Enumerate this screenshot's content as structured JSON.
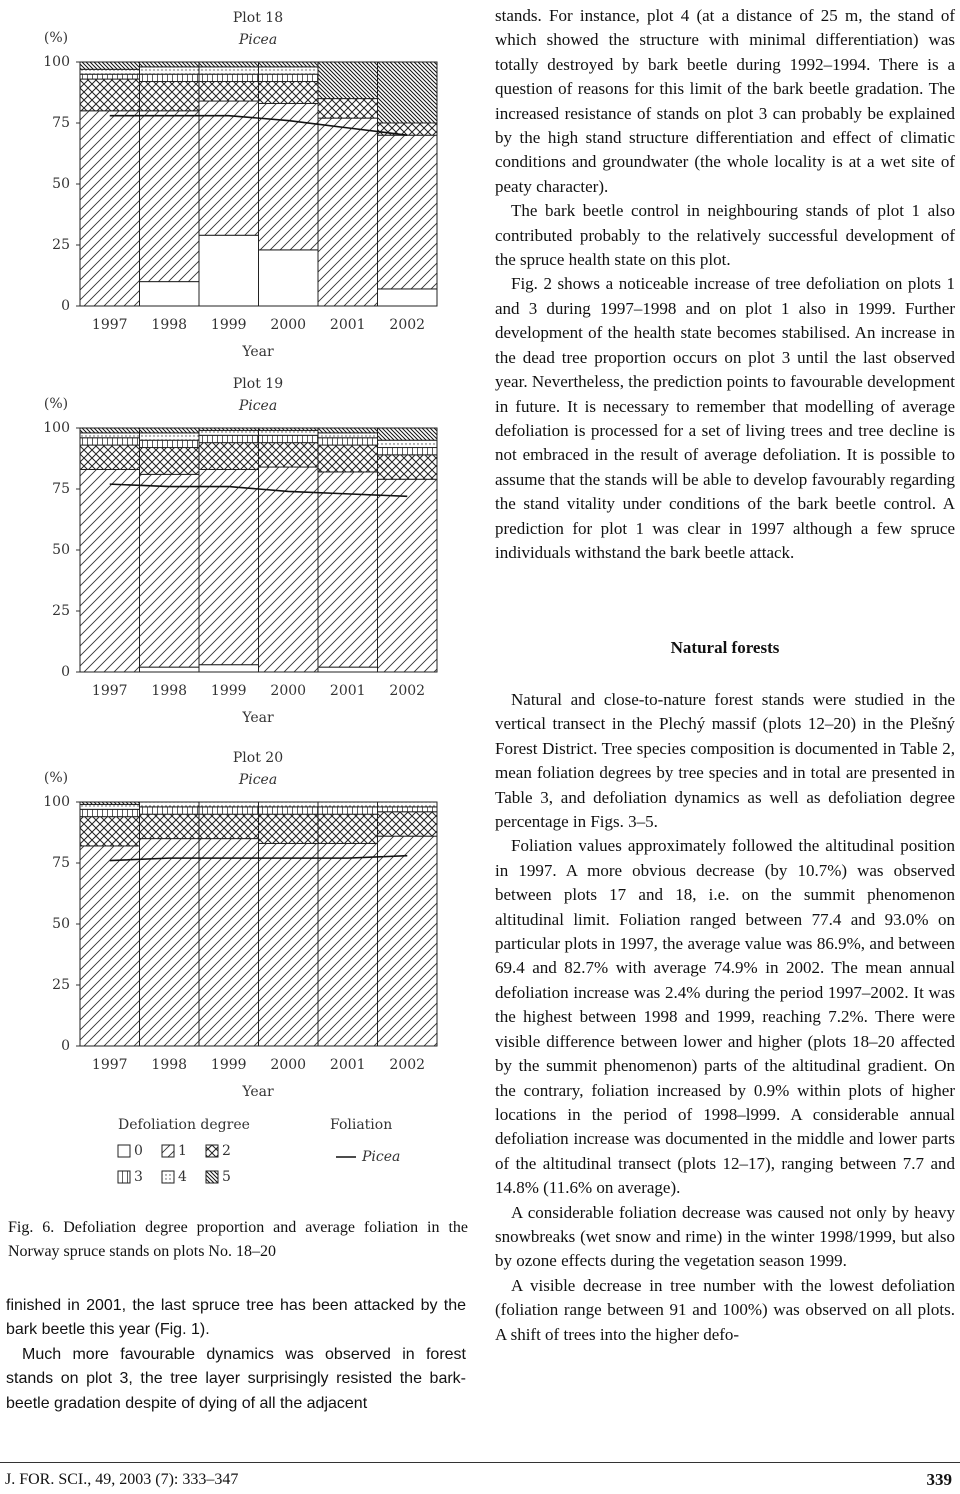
{
  "chart_data": [
    {
      "type": "bar",
      "stacked": true,
      "title": "Plot 18",
      "subtitle": "Picea",
      "ylabel": "(%)",
      "xlabel": "Year",
      "categories": [
        "1997",
        "1998",
        "1999",
        "2000",
        "2001",
        "2002"
      ],
      "ylim": [
        0,
        100
      ],
      "yticks": [
        0,
        25,
        50,
        75,
        100
      ],
      "series": [
        {
          "name": "0",
          "values": [
            0,
            10,
            29,
            23,
            0,
            7
          ]
        },
        {
          "name": "1",
          "values": [
            80,
            70,
            55,
            60,
            77,
            63
          ]
        },
        {
          "name": "2",
          "values": [
            13,
            12,
            8,
            9,
            8,
            5
          ]
        },
        {
          "name": "3",
          "values": [
            2,
            3,
            3,
            3,
            0,
            0
          ]
        },
        {
          "name": "4",
          "values": [
            2,
            3,
            3,
            3,
            0,
            0
          ]
        },
        {
          "name": "5",
          "values": [
            3,
            2,
            2,
            2,
            15,
            25
          ]
        },
        {
          "name": "Picea",
          "type": "line",
          "values": [
            78,
            78,
            78,
            76,
            73,
            70
          ]
        }
      ]
    },
    {
      "type": "bar",
      "stacked": true,
      "title": "Plot 19",
      "subtitle": "Picea",
      "ylabel": "(%)",
      "xlabel": "Year",
      "categories": [
        "1997",
        "1998",
        "1999",
        "2000",
        "2001",
        "2002"
      ],
      "ylim": [
        0,
        100
      ],
      "yticks": [
        0,
        25,
        50,
        75,
        100
      ],
      "series": [
        {
          "name": "0",
          "values": [
            0,
            2,
            3,
            0,
            2,
            0
          ]
        },
        {
          "name": "1",
          "values": [
            83,
            79,
            80,
            84,
            80,
            79
          ]
        },
        {
          "name": "2",
          "values": [
            10,
            11,
            11,
            10,
            11,
            10
          ]
        },
        {
          "name": "3",
          "values": [
            3,
            3,
            3,
            3,
            3,
            3
          ]
        },
        {
          "name": "4",
          "values": [
            2,
            3,
            2,
            2,
            2,
            3
          ]
        },
        {
          "name": "5",
          "values": [
            2,
            2,
            1,
            1,
            2,
            5
          ]
        },
        {
          "name": "Picea",
          "type": "line",
          "values": [
            77,
            76,
            76,
            74,
            73,
            72
          ]
        }
      ]
    },
    {
      "type": "bar",
      "stacked": true,
      "title": "Plot 20",
      "subtitle": "Picea",
      "ylabel": "(%)",
      "xlabel": "Year",
      "categories": [
        "1997",
        "1998",
        "1999",
        "2000",
        "2001",
        "2002"
      ],
      "ylim": [
        0,
        100
      ],
      "yticks": [
        0,
        25,
        50,
        75,
        100
      ],
      "series": [
        {
          "name": "0",
          "values": [
            0,
            0,
            0,
            0,
            0,
            0
          ]
        },
        {
          "name": "1",
          "values": [
            82,
            85,
            85,
            83,
            83,
            86
          ]
        },
        {
          "name": "2",
          "values": [
            12,
            10,
            10,
            12,
            12,
            10
          ]
        },
        {
          "name": "3",
          "values": [
            3,
            3,
            3,
            3,
            3,
            2
          ]
        },
        {
          "name": "4",
          "values": [
            2,
            2,
            2,
            2,
            2,
            2
          ]
        },
        {
          "name": "5",
          "values": [
            1,
            0,
            0,
            0,
            0,
            0
          ]
        },
        {
          "name": "Picea",
          "type": "line",
          "values": [
            76,
            77,
            77,
            77,
            77,
            78
          ]
        }
      ]
    }
  ],
  "legend": {
    "defoliation_title": "Defoliation degree",
    "foliation_title": "Foliation"
  },
  "caption": "Fig. 6. Defoliation degree proportion and average foliation in the Norway spruce stands on plots No. 18–20",
  "left_text": [
    "finished in 2001, the last spruce tree has been attacked by the bark beetle this year (Fig. 1).",
    "Much more favourable dynamics was observed in forest stands on plot 3, the tree layer surprisingly resisted the bark-beetle gradation despite of dying of all the adjacent"
  ],
  "right_text": [
    "stands. For instance, plot 4 (at a distance of 25 m, the stand of which showed the structure with minimal differentiation) was totally destroyed by bark beetle during 1992–1994. There is a question of reasons for this limit of the bark beetle gradation. The increased resistance of stands on plot 3 can probably be explained by the high stand structure differentiation and effect of climatic conditions and groundwater (the whole locality is at a wet site of peaty character).",
    "The bark beetle control in neighbouring stands of plot 1 also contributed probably to the relatively successful development of the spruce health state on this plot.",
    "Fig. 2 shows a noticeable increase of tree defoliation on plots 1 and 3 during 1997–1998 and on plot 1 also in 1999. Further development of the health state becomes stabilised. An increase in the dead tree proportion occurs on plot 3 until the last observed year. Nevertheless, the prediction points to favourable development in future. It is necessary to remember that modelling of average defoliation is processed for a set of living trees and tree decline is not embraced in the result of average defoliation. It is possible to assume that the stands will be able to develop favourably regarding the stand vitality under conditions of the bark beetle control. A prediction for plot 1 was clear in 1997 although a few spruce individuals withstand the bark beetle attack."
  ],
  "section_heading": "Natural forests",
  "section_text": [
    "Natural and close-to-nature forest stands were studied in the vertical transect in the Plechý massif (plots 12–20) in the Plešný Forest District. Tree species composition is documented in Table 2, mean foliation degrees by tree species and in total are presented in Table 3, and defoliation dynamics as well as defoliation degree percentage in Figs. 3–5.",
    "Foliation values approximately followed the altitudinal position in 1997. A more obvious decrease (by 10.7%) was observed between plots 17 and 18, i.e. on the summit phenomenon altitudinal limit. Foliation ranged between 77.4 and 93.0% on particular plots in 1997, the average value was 86.9%, and between 69.4 and 82.7% with average 74.9% in 2002. The mean annual defoliation increase was 2.4% during the period 1997–2002. It was the highest between 1998 and 1999, reaching 7.2%. There were visible difference between lower and higher (plots 18–20 affected by the summit phenomenon) parts of the altitudinal gradient. On the contrary, foliation increased by 0.9% within plots of higher locations in the period of 1998–l999. A considerable annual defoliation increase was documented in the middle and lower parts of the altitudinal transect (plots 12–17), ranging between 7.7 and 14.8% (11.6% on average).",
    "A considerable foliation decrease was caused not only by heavy snowbreaks (wet snow and rime) in the winter 1998/1999, but also by ozone effects during the vegetation season 1999.",
    "A visible decrease in tree number with the lowest defoliation (foliation range between 91 and 100%) was observed on all plots. A shift of trees into the higher defo-"
  ],
  "footer": {
    "journal": "J. FOR. SCI., 49, 2003 (7): 333–347",
    "page": "339"
  }
}
